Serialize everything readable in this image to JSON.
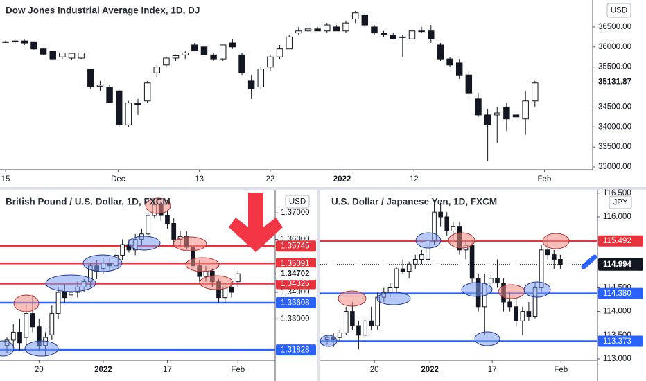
{
  "chart_data": [
    {
      "type": "candlestick",
      "title": "Dow Jones Industrial Average Index, 1D, DJ",
      "currency": "USD",
      "open": [
        36120,
        36140,
        36150,
        36130,
        35950,
        35900,
        35750,
        35720,
        35720,
        35450,
        35020,
        35000,
        34900,
        34050,
        34600,
        34650,
        35350,
        35550,
        35720,
        35800,
        36050,
        36000,
        35800,
        35700,
        36100,
        35800,
        35150,
        35000,
        35500,
        35750,
        35950,
        36350,
        36400,
        36450,
        36400,
        36500,
        36400,
        36700,
        36800,
        36500,
        36350,
        36300,
        36250,
        36200,
        36400,
        36400,
        36050,
        35700,
        35600,
        35300,
        34700,
        34300,
        34300,
        34500,
        34300,
        34200,
        34650
      ],
      "high": [
        36160,
        36200,
        36180,
        36140,
        35970,
        35910,
        35850,
        35850,
        35850,
        35450,
        35150,
        35050,
        34950,
        34650,
        34700,
        35150,
        35550,
        35750,
        35800,
        35900,
        36100,
        36000,
        35850,
        36050,
        36200,
        35850,
        35300,
        35500,
        35800,
        36050,
        36300,
        36500,
        36550,
        36500,
        36600,
        36550,
        36650,
        36900,
        36850,
        36550,
        36400,
        36350,
        36300,
        36450,
        36500,
        36550,
        36100,
        35750,
        35700,
        35400,
        34850,
        34450,
        34500,
        34600,
        34400,
        34900,
        35150
      ],
      "low": [
        36100,
        36100,
        36050,
        35930,
        35800,
        35650,
        35700,
        35680,
        35700,
        34950,
        34900,
        34600,
        34000,
        34000,
        34300,
        34600,
        35250,
        35500,
        35650,
        35700,
        35900,
        35700,
        35650,
        35650,
        35950,
        35300,
        34700,
        34950,
        35400,
        35700,
        35950,
        36300,
        36350,
        36400,
        36350,
        36400,
        36350,
        36600,
        36500,
        36300,
        36250,
        36200,
        35750,
        36150,
        36350,
        36100,
        35650,
        35500,
        35200,
        34800,
        34250,
        33150,
        33600,
        33900,
        34200,
        33800,
        34500
      ],
      "close": [
        36130,
        36150,
        36100,
        35950,
        35820,
        35700,
        35850,
        35840,
        35850,
        35000,
        35050,
        34620,
        34050,
        34600,
        34550,
        35100,
        35500,
        35720,
        35780,
        35850,
        35900,
        35800,
        35700,
        36050,
        36000,
        35350,
        34950,
        35450,
        35750,
        35950,
        36250,
        36400,
        36450,
        36400,
        36550,
        36400,
        36600,
        36850,
        36550,
        36350,
        36300,
        36200,
        36250,
        36400,
        36400,
        36200,
        35700,
        35550,
        35300,
        34850,
        34300,
        34050,
        34350,
        34200,
        34250,
        34650,
        35100
      ],
      "xlim": [
        -0.59,
        62.1
      ],
      "ylim": [
        32930,
        37175
      ],
      "xticks": [
        {
          "value": 0,
          "label": "15"
        },
        {
          "value": 11.9,
          "label": "Dec"
        },
        {
          "value": 20.5,
          "label": "13"
        },
        {
          "value": 28,
          "label": "22"
        },
        {
          "value": 35.6,
          "label": "2022"
        },
        {
          "value": 43.2,
          "label": "12"
        },
        {
          "value": 57,
          "label": "Feb"
        }
      ],
      "yticks": [
        {
          "value": 36500,
          "label": "36500.00"
        },
        {
          "value": 36000,
          "label": "36000.00"
        },
        {
          "value": 35500,
          "label": "35500.00"
        },
        {
          "value": 34500,
          "label": "34500.00"
        },
        {
          "value": 34000,
          "label": "34000.00"
        },
        {
          "value": 33500,
          "label": "33500.00"
        },
        {
          "value": 33000,
          "label": "33000.00"
        }
      ],
      "levels": [],
      "last": {
        "value": 35131.87,
        "label": "35131.87",
        "background": "#ffffff",
        "text_color": "#131722",
        "dotted": false
      }
    },
    {
      "type": "candlestick",
      "title": "British Pound / U.S. Dollar, 1D, FXCM",
      "currency": "USD",
      "open": [
        1.32,
        1.322,
        1.325,
        1.323,
        1.332,
        1.327,
        1.32,
        1.324,
        1.332,
        1.34,
        1.339,
        1.34,
        1.342,
        1.344,
        1.35,
        1.349,
        1.351,
        1.35,
        1.354,
        1.358,
        1.356,
        1.36,
        1.362,
        1.369,
        1.373,
        1.369,
        1.366,
        1.36,
        1.361,
        1.357,
        1.35,
        1.346,
        1.348,
        1.344,
        1.338,
        1.342,
        1.344
      ],
      "high": [
        1.323,
        1.328,
        1.33,
        1.335,
        1.339,
        1.33,
        1.325,
        1.335,
        1.342,
        1.343,
        1.341,
        1.344,
        1.345,
        1.351,
        1.352,
        1.353,
        1.353,
        1.356,
        1.36,
        1.36,
        1.362,
        1.364,
        1.37,
        1.375,
        1.3745,
        1.371,
        1.368,
        1.363,
        1.363,
        1.359,
        1.352,
        1.35,
        1.349,
        1.345,
        1.343,
        1.344,
        1.348
      ],
      "low": [
        1.317,
        1.319,
        1.318,
        1.32,
        1.325,
        1.318,
        1.316,
        1.322,
        1.33,
        1.336,
        1.337,
        1.338,
        1.34,
        1.342,
        1.345,
        1.347,
        1.348,
        1.349,
        1.352,
        1.355,
        1.354,
        1.358,
        1.361,
        1.368,
        1.367,
        1.364,
        1.358,
        1.357,
        1.356,
        1.348,
        1.344,
        1.344,
        1.342,
        1.336,
        1.336,
        1.338,
        1.342
      ],
      "close": [
        1.322,
        1.325,
        1.321,
        1.332,
        1.327,
        1.32,
        1.323,
        1.332,
        1.34,
        1.338,
        1.34,
        1.342,
        1.344,
        1.35,
        1.348,
        1.351,
        1.35,
        1.354,
        1.358,
        1.356,
        1.36,
        1.362,
        1.369,
        1.373,
        1.369,
        1.366,
        1.36,
        1.361,
        1.357,
        1.35,
        1.346,
        1.348,
        1.344,
        1.338,
        1.342,
        1.34,
        1.347
      ],
      "xlim": [
        -1.08,
        41.8
      ],
      "ylim": [
        1.3144,
        1.3784
      ],
      "xticks": [
        {
          "value": 5,
          "label": "20"
        },
        {
          "value": 15,
          "label": "2022"
        },
        {
          "value": 25,
          "label": "17"
        },
        {
          "value": 36,
          "label": "Feb"
        }
      ],
      "yticks": [
        {
          "value": 1.37,
          "label": "1.37000"
        },
        {
          "value": 1.36,
          "label": "1.36000"
        },
        {
          "value": 1.34,
          "label": "1.34000"
        },
        {
          "value": 1.33,
          "label": "1.33000"
        }
      ],
      "levels": [
        {
          "value": 1.35745,
          "label": "1.35745",
          "color": "#e8323c"
        },
        {
          "value": 1.35091,
          "label": "1.35091",
          "color": "#e8323c"
        },
        {
          "value": 1.34325,
          "label": "1.34325",
          "color": "#e8323c"
        },
        {
          "value": 1.33608,
          "label": "1.33608",
          "color": "#2962ff"
        },
        {
          "value": 1.31828,
          "label": "1.31828",
          "color": "#2962ff"
        }
      ],
      "last": {
        "value": 1.34702,
        "label": "1.34702",
        "background": "#ffffff",
        "text_color": "#131722",
        "dotted": false
      }
    },
    {
      "type": "candlestick",
      "title": "U.S. Dollar / Japanese Yen, 1D, FXCM",
      "currency": "JPY",
      "open": [
        113.4,
        113.45,
        113.45,
        113.55,
        114,
        113.7,
        113.5,
        113.8,
        113.7,
        114.3,
        114.4,
        114.5,
        114.9,
        114.85,
        115,
        115.1,
        115.1,
        115.5,
        116.1,
        116,
        115.7,
        115.8,
        115.3,
        115.4,
        114.7,
        114.1,
        114.6,
        114.7,
        114.6,
        114.2,
        114.1,
        113.8,
        114,
        113.9,
        114.5,
        115.3,
        115.2,
        115.1
      ],
      "high": [
        113.5,
        113.55,
        113.6,
        114.1,
        114.2,
        113.8,
        113.9,
        114.1,
        114.4,
        114.5,
        114.6,
        114.95,
        115.1,
        115.05,
        115.2,
        115.3,
        115.6,
        116.35,
        116.3,
        116.1,
        115.9,
        115.9,
        115.5,
        115.5,
        114.8,
        114.8,
        114.8,
        115.1,
        114.7,
        114.4,
        114.3,
        114.1,
        114.2,
        114.6,
        115.4,
        115.6,
        115.3,
        115.2
      ],
      "low": [
        113.3,
        113.25,
        113.35,
        113.5,
        113.6,
        113.2,
        113.4,
        113.6,
        113.6,
        114.2,
        114.3,
        114.4,
        114.8,
        114.7,
        114.9,
        115,
        115,
        115.4,
        115.8,
        115.6,
        115.5,
        115.2,
        115.1,
        114.6,
        114,
        113.5,
        114.4,
        114.5,
        114,
        114,
        113.7,
        113.5,
        113.8,
        113.85,
        114.4,
        115.1,
        114.9,
        114.9
      ],
      "close": [
        113.45,
        113.4,
        113.55,
        114,
        113.7,
        113.5,
        113.8,
        113.7,
        114.3,
        114.4,
        114.5,
        114.9,
        114.85,
        115,
        115.1,
        115.2,
        115.5,
        116.1,
        116,
        115.7,
        115.8,
        115.3,
        115.4,
        114.7,
        114.1,
        114.6,
        114.7,
        114.6,
        114.2,
        114.1,
        113.8,
        114,
        113.9,
        114.5,
        115.3,
        115.2,
        115.1,
        114.99
      ],
      "xlim": [
        -1.1,
        42.9
      ],
      "ylim": [
        112.97,
        116.556
      ],
      "xticks": [
        {
          "value": 7.5,
          "label": "20"
        },
        {
          "value": 16.3,
          "label": "2022"
        },
        {
          "value": 26.2,
          "label": "17"
        },
        {
          "value": 37.1,
          "label": "Feb"
        }
      ],
      "yticks": [
        {
          "value": 116.5,
          "label": "116.500"
        },
        {
          "value": 116,
          "label": "116.000"
        },
        {
          "value": 114.5,
          "label": "114.500"
        },
        {
          "value": 114,
          "label": "114.000"
        },
        {
          "value": 113.5,
          "label": "113.500"
        },
        {
          "value": 113,
          "label": "113.000"
        }
      ],
      "levels": [
        {
          "value": 115.492,
          "label": "115.492",
          "color": "#e8323c"
        },
        {
          "value": 114.38,
          "label": "114.380",
          "color": "#2962ff"
        },
        {
          "value": 113.373,
          "label": "113.373",
          "color": "#2962ff"
        }
      ],
      "last": {
        "value": 114.994,
        "label": "114.994",
        "background": "#131722",
        "text_color": "#ffffff",
        "dotted": true
      }
    }
  ]
}
